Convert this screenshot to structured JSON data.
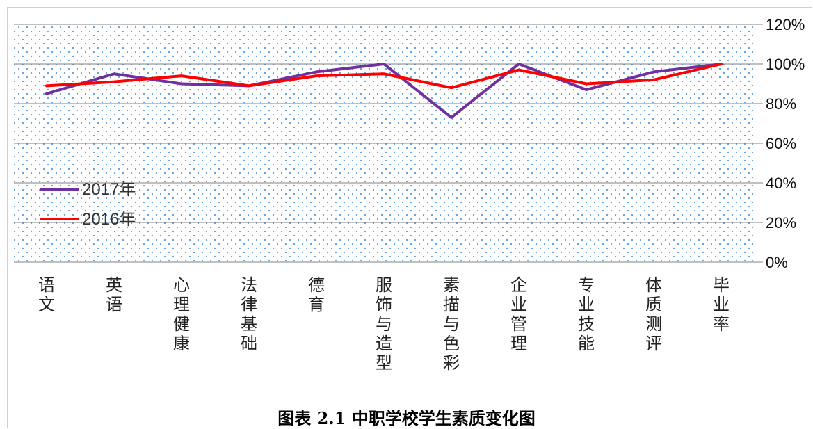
{
  "caption": "图表 2.1 中职学校学生素质变化图",
  "chart_data": {
    "type": "line",
    "categories": [
      "语文",
      "英语",
      "心理健康",
      "法律基础",
      "德育",
      "服饰与造型",
      "素描与色彩",
      "企业管理",
      "专业技能",
      "体质测评",
      "毕业率"
    ],
    "series": [
      {
        "name": "2017年",
        "color": "#7030a0",
        "values": [
          0.85,
          0.95,
          0.9,
          0.89,
          0.96,
          1.0,
          0.73,
          1.0,
          0.87,
          0.96,
          1.0
        ]
      },
      {
        "name": "2016年",
        "color": "#ff0000",
        "values": [
          0.89,
          0.91,
          0.94,
          0.89,
          0.94,
          0.95,
          0.88,
          0.97,
          0.9,
          0.92,
          1.0
        ]
      }
    ],
    "y_ticks": [
      "0%",
      "20%",
      "40%",
      "60%",
      "80%",
      "100%",
      "120%"
    ],
    "ylim": [
      0,
      1.2
    ],
    "ytick_step": 0.2,
    "y_axis_position": "right",
    "grid": true,
    "legend_position": "left-inside",
    "plot_background": "dotted",
    "dot_color": "#5b9bd5",
    "grid_color": "#808080"
  }
}
